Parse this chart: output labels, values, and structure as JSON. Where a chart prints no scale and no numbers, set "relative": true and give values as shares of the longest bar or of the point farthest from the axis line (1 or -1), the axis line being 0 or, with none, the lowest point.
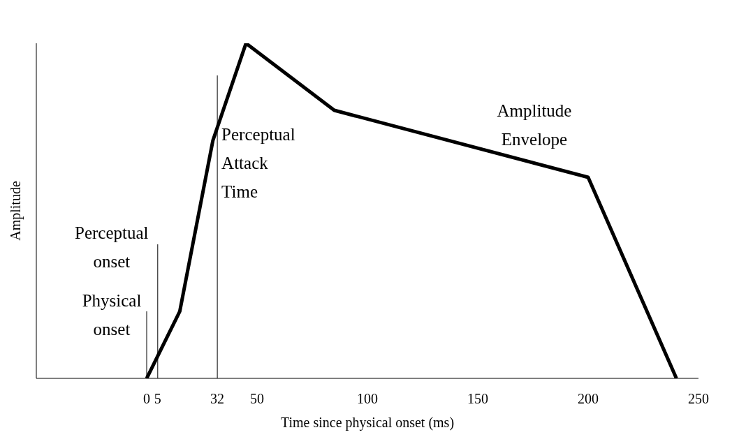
{
  "chart_data": {
    "type": "line",
    "xlabel": "Time since physical onset (ms)",
    "ylabel": "Amplitude",
    "relative": true,
    "x": [
      0,
      15,
      30,
      45,
      85,
      200,
      240
    ],
    "series": [
      {
        "name": "Amplitude Envelope",
        "color": "#000000",
        "values": [
          0,
          0.2,
          0.71,
          1,
          0.8,
          0.6,
          0
        ]
      }
    ],
    "xlim": [
      -50,
      250
    ],
    "xticks": [
      0,
      5,
      32,
      50,
      100,
      150,
      200,
      250
    ],
    "ref_lines": [
      {
        "axis": "x",
        "value": 0,
        "label": "Physical onset",
        "color": "#000000"
      },
      {
        "axis": "x",
        "value": 5,
        "label": "Perceptual onset",
        "color": "#000000"
      },
      {
        "axis": "x",
        "value": 32,
        "label": "Perceptual Attack Time",
        "color": "#000000"
      }
    ],
    "grid": false,
    "legend": false,
    "marker": "none",
    "line_style": "solid"
  }
}
